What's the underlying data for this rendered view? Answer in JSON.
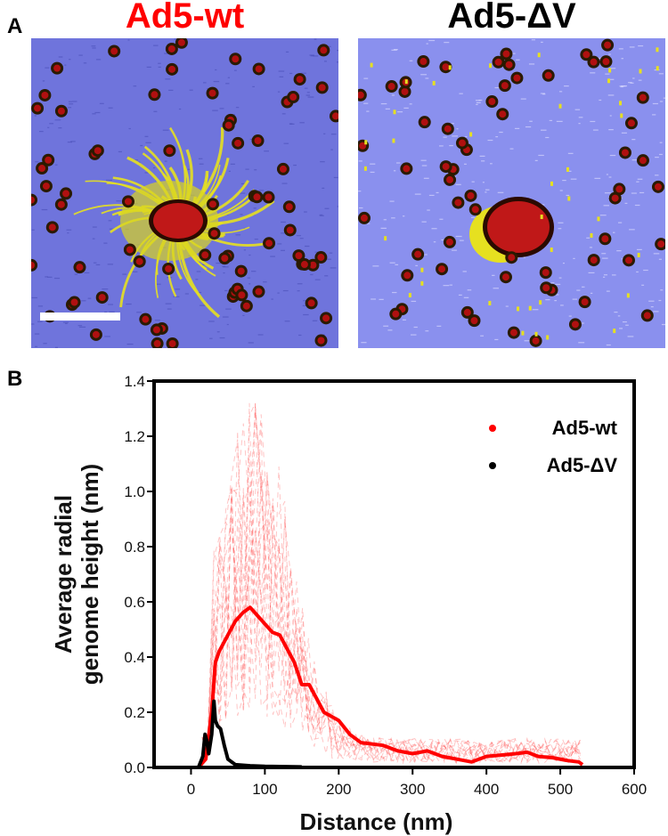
{
  "panel_a": {
    "label": "A",
    "images": [
      {
        "title": "Ad5-wt",
        "title_color": "#ff0000",
        "has_scale_bar": true
      },
      {
        "title": "Ad5-ΔV",
        "title_color": "#000000",
        "has_scale_bar": false
      }
    ]
  },
  "panel_b": {
    "label": "B"
  },
  "colors": {
    "background_blue": "#7d84e8",
    "particle_red": "#b01010",
    "genome_yellow": "#e6e020"
  },
  "chart_data": {
    "type": "line",
    "xlabel": "Distance (nm)",
    "ylabel_lines": [
      "Average radial",
      "genome height (nm)"
    ],
    "xlim": [
      -50,
      600
    ],
    "ylim": [
      0,
      1.4
    ],
    "xticks": [
      "0",
      "100",
      "200",
      "300",
      "400",
      "500",
      "600"
    ],
    "yticks": [
      "0.0",
      "0.2",
      "0.4",
      "0.6",
      "0.8",
      "1.0",
      "1.2",
      "1.4"
    ],
    "legend": "top-right",
    "grid": false,
    "series": [
      {
        "name": "Ad5-wt",
        "color": "#ff0000",
        "x": [
          10,
          20,
          28,
          33,
          38,
          50,
          60,
          70,
          80,
          90,
          100,
          110,
          120,
          130,
          140,
          150,
          160,
          170,
          180,
          200,
          215,
          230,
          260,
          280,
          300,
          320,
          340,
          360,
          380,
          400,
          420,
          440,
          455,
          470,
          490,
          510,
          525,
          530
        ],
        "y": [
          0,
          0.03,
          0.2,
          0.38,
          0.42,
          0.48,
          0.53,
          0.56,
          0.58,
          0.55,
          0.52,
          0.49,
          0.48,
          0.43,
          0.38,
          0.3,
          0.3,
          0.25,
          0.2,
          0.17,
          0.12,
          0.09,
          0.08,
          0.06,
          0.05,
          0.06,
          0.04,
          0.03,
          0.02,
          0.04,
          0.045,
          0.05,
          0.055,
          0.04,
          0.035,
          0.025,
          0.02,
          0.01
        ]
      },
      {
        "name": "Ad5-ΔV",
        "color": "#000000",
        "x": [
          10,
          16,
          19,
          21,
          24,
          28,
          31,
          33,
          36,
          40,
          45,
          50,
          60,
          80,
          100,
          150
        ],
        "y": [
          0,
          0.04,
          0.12,
          0.1,
          0.05,
          0.12,
          0.24,
          0.17,
          0.15,
          0.14,
          0.08,
          0.03,
          0.01,
          0.006,
          0.004,
          0.002
        ]
      }
    ]
  }
}
